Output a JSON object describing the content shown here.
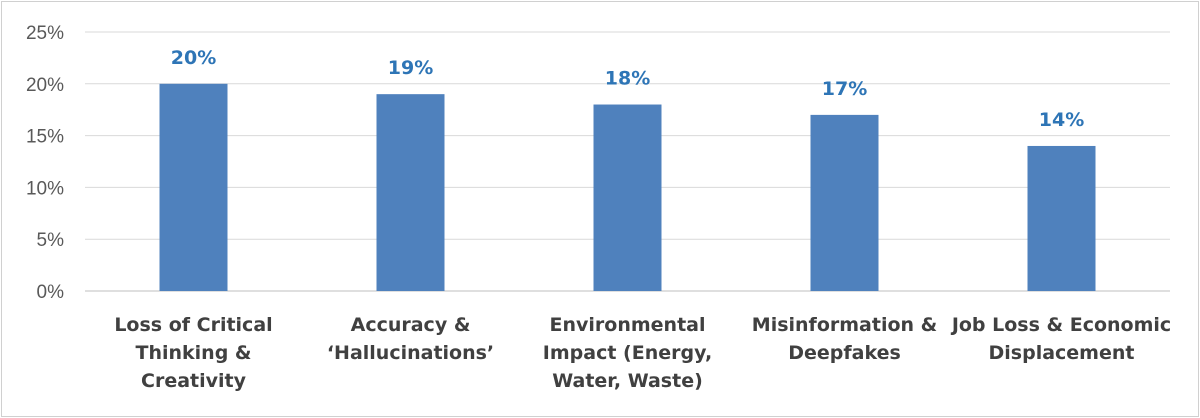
{
  "chart_data": {
    "type": "bar",
    "categories": [
      [
        "Loss of Critical",
        "Thinking &",
        "Creativity"
      ],
      [
        "Accuracy &",
        "‘Hallucinations’"
      ],
      [
        "Environmental",
        "Impact (Energy,",
        "Water, Waste)"
      ],
      [
        "Misinformation &",
        "Deepfakes"
      ],
      [
        "Job Loss & Economic",
        "Displacement"
      ]
    ],
    "values": [
      20,
      19,
      18,
      17,
      14
    ],
    "data_labels": [
      "20%",
      "19%",
      "18%",
      "17%",
      "14%"
    ],
    "y_ticks": [
      "0%",
      "5%",
      "10%",
      "15%",
      "20%",
      "25%"
    ],
    "ylim": [
      0,
      25
    ],
    "grid": true,
    "bar_color": "#4f81bd",
    "label_color": "#2e75b6"
  }
}
